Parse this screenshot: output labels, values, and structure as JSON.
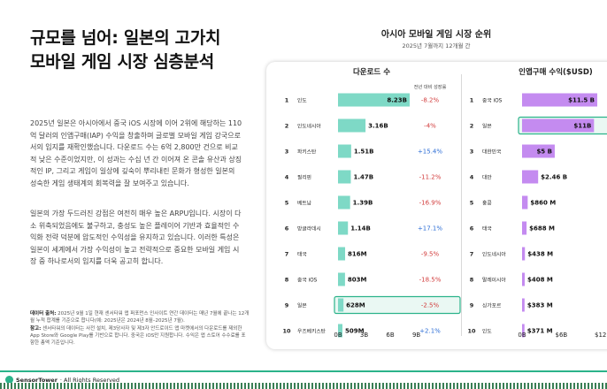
{
  "title": "규모를 넘어: 일본의 고가치 모바일 게임 시장 심층분석",
  "paragraphs": [
    "2025년 일본은 아시아에서 중국 iOS 시장에 이어 2위에 해당하는 110억 달러의 인앱구매(IAP) 수익을 창출하며 글로벌 모바일 게임 강국으로서의 입지를 재확인했습니다. 다운로드 수는 6억 2,800만 건으로 비교적 낮은 수준이었지만, 이 성과는 수십 년 간 이어져 온 콘솔 유산과 상징적인 IP, 그리고 게임이 일상에 깊숙이 뿌리내린 문화가 형성한 일본의 성숙한 게임 생태계의 회복력을 잘 보여주고 있습니다.",
    "일본의 가장 두드러진 강점은 여전히 매우 높은 ARPU입니다. 시장이 다소 위축되었음에도 불구하고, 충성도 높은 플레이어 기반과 효율적인 수익화 전략 덕분에 압도적인 수익성을 유지하고 있습니다. 이러한 특성은 일본이 세계에서 가장 수익성이 높고 전략적으로 중요한 모바일 게임 시장 중 하나로서의 입지를 더욱 공고히 합니다."
  ],
  "notes": {
    "source_label": "데이터 출처:",
    "source_text": "2025년 9월 1일 현재 센서타워 앱 퍼포먼스 인사이트 연간 데이터는 매년 7월에 끝나는 12개월 누적 합계를 기준으로 합니다(예: 2025년은 2024년 8월–2025년 7월).",
    "ref_label": "참고:",
    "ref_text": "센서타워의 데이터는 사전 설치, 제3당사자 및 제3자 안드로이드 앱 마켓에서의 다운로드를 제외한 App Store와 Google Play를 기반으로 합니다. 중국은 iOS만 지원합니다. 수익은 앱 스토어 수수료를 포함한 총액 기준입니다."
  },
  "footer": {
    "brand": "SensorTower",
    "rights": "· All Rights Reserved"
  },
  "colors": {
    "downloads_bar": "#7ed9c6",
    "iap_bar": "#c48bf0",
    "highlight_fill": "#eaf8f3",
    "highlight_stroke": "#2bb38a",
    "negative": "#d23c3c",
    "positive": "#2f6fd6",
    "accent_line": "#2bb38a"
  },
  "chart_header": {
    "title": "아시아 모바일 게임 시장 순위",
    "subtitle": "2025년 7월까지 12개월 간"
  },
  "chart_data": [
    {
      "type": "bar",
      "orientation": "horizontal",
      "title": "다운로드 수",
      "change_header": "전년 대비 성장률",
      "ranks": [
        1,
        2,
        3,
        4,
        5,
        6,
        7,
        8,
        9,
        10
      ],
      "categories": [
        "인도",
        "인도네시아",
        "파키스탄",
        "필리핀",
        "베트남",
        "방글라데시",
        "태국",
        "중국 iOS",
        "일본",
        "우즈베키스탄"
      ],
      "values": [
        8.23,
        3.16,
        1.51,
        1.47,
        1.39,
        1.14,
        0.816,
        0.803,
        0.628,
        0.509
      ],
      "value_labels": [
        "8.23B",
        "3.16B",
        "1.51B",
        "1.47B",
        "1.39B",
        "1.14B",
        "816M",
        "803M",
        "628M",
        "509M"
      ],
      "yoy_change": [
        "-8.2%",
        "-4%",
        "+15.4%",
        "-11.2%",
        "-16.9%",
        "+17.1%",
        "-9.5%",
        "-18.5%",
        "-2.5%",
        "+2.1%"
      ],
      "highlight": "일본",
      "xlim": [
        0,
        9
      ],
      "xticks": [
        "0B",
        "3B",
        "6B",
        "9B"
      ]
    },
    {
      "type": "bar",
      "orientation": "horizontal",
      "title": "인앱구매 수익($USD)",
      "ranks": [
        1,
        2,
        3,
        4,
        5,
        6,
        7,
        8,
        9,
        10
      ],
      "categories": [
        "중국 iOS",
        "일본",
        "대한민국",
        "대만",
        "홍콩",
        "태국",
        "인도네시아",
        "말레이시아",
        "싱가포르",
        "인도"
      ],
      "values": [
        11.5,
        11.0,
        5.0,
        2.46,
        0.86,
        0.688,
        0.438,
        0.408,
        0.383,
        0.371
      ],
      "value_labels": [
        "$11.5 B",
        "$11B",
        "$5 B",
        "$2.46 B",
        "$860 M",
        "$688 M",
        "$438 M",
        "$408 M",
        "$383 M",
        "$371 M"
      ],
      "highlight": "일본",
      "xlim": [
        0,
        12
      ],
      "xticks": [
        "0B",
        "$6B",
        "$12"
      ]
    }
  ]
}
